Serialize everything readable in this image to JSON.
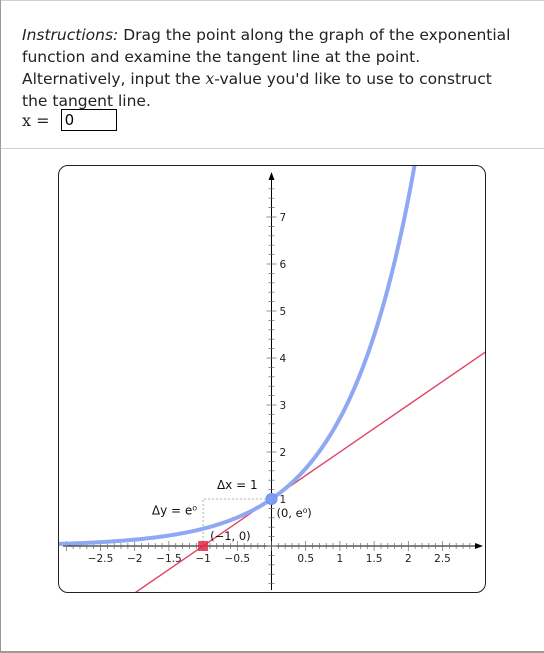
{
  "instructions": {
    "lead": "Instructions:",
    "before_var": " Drag the point along the graph of the exponential function and examine the tangent line at the point. Alternatively, input the ",
    "var": "x",
    "after_var": "-value you'd like to use to construct the tangent line."
  },
  "input": {
    "label": "x = ",
    "value": "0"
  },
  "graph": {
    "x_ticks": [
      "-2.5",
      "-2",
      "-1.5",
      "-1",
      "-0.5",
      "0.5",
      "1",
      "1.5",
      "2",
      "2.5"
    ],
    "y_ticks": [
      "1",
      "2",
      "3",
      "4",
      "5",
      "6",
      "7"
    ],
    "dx_label": "Δx = 1",
    "dy_label": "Δy = e⁰",
    "point_label": "(0, e⁰)",
    "root_label": "(−1, 0)",
    "point_x": 0,
    "curve_color": "#8fa8f4",
    "tangent_color": "#e0425f",
    "point_color": "#7f9cf5",
    "root_color": "#e02a4a"
  }
}
